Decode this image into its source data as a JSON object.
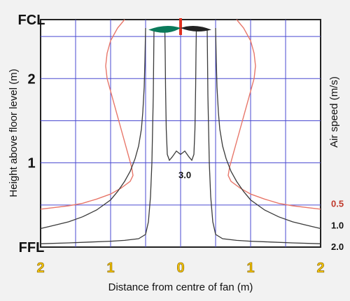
{
  "chart_data": {
    "type": "line",
    "title": "",
    "xlabel": "Distance from centre of fan (m)",
    "ylabel": "Height above floor level (m)",
    "right_label": "Air speed (m/s)",
    "xlim": [
      -2,
      2
    ],
    "ylim": [
      0,
      2.7
    ],
    "x_ticks": [
      "2",
      "1",
      "0",
      "1",
      "2"
    ],
    "y_ticks": [
      {
        "value": 0,
        "label": "FFL"
      },
      {
        "value": 1,
        "label": "1"
      },
      {
        "value": 2,
        "label": "2"
      },
      {
        "value": 2.7,
        "label": "FCL"
      }
    ],
    "grid": true,
    "colors": {
      "grid": "#4a4ad0",
      "red": "#e8776a",
      "black": "#3a3a3a",
      "fan": "#0a7a5a",
      "rod": "#e03020"
    },
    "series": [
      {
        "name": "0.5",
        "color": "#e8776a",
        "x": [
          0.8,
          0.9,
          1.0,
          1.05,
          1.07,
          1.05,
          1.0,
          0.95,
          0.9,
          0.85,
          0.8,
          0.75,
          0.7,
          0.68,
          0.72,
          0.85,
          1.0,
          1.2,
          1.4,
          1.6,
          1.8,
          2.0
        ],
        "y": [
          2.7,
          2.6,
          2.45,
          2.3,
          2.15,
          2.0,
          1.85,
          1.7,
          1.55,
          1.4,
          1.25,
          1.1,
          0.95,
          0.85,
          0.78,
          0.7,
          0.63,
          0.57,
          0.52,
          0.49,
          0.47,
          0.45
        ]
      },
      {
        "name": "1.0",
        "color": "#3a3a3a",
        "x": [
          0.5,
          0.51,
          0.52,
          0.54,
          0.56,
          0.6,
          0.65,
          0.72,
          0.8,
          0.9,
          1.0,
          1.2,
          1.4,
          1.6,
          1.8,
          2.0
        ],
        "y": [
          2.6,
          2.2,
          1.9,
          1.6,
          1.4,
          1.2,
          1.05,
          0.9,
          0.78,
          0.66,
          0.56,
          0.44,
          0.36,
          0.3,
          0.26,
          0.22
        ]
      },
      {
        "name": "2.0",
        "color": "#3a3a3a",
        "x": [
          0.38,
          0.385,
          0.39,
          0.4,
          0.41,
          0.43,
          0.46,
          0.5,
          0.6,
          0.8,
          1.0,
          1.3,
          1.6,
          2.0
        ],
        "y": [
          2.58,
          2.2,
          1.8,
          1.4,
          1.0,
          0.6,
          0.3,
          0.15,
          0.1,
          0.08,
          0.07,
          0.06,
          0.05,
          0.04
        ]
      },
      {
        "name": "3.0",
        "color": "#3a3a3a",
        "x": [
          0.0,
          0.06,
          0.12,
          0.16,
          0.19,
          0.205,
          0.215,
          0.22,
          0.225
        ],
        "y": [
          1.1,
          1.14,
          1.07,
          1.03,
          1.1,
          1.4,
          1.9,
          2.3,
          2.58
        ]
      }
    ],
    "contour_labels": [
      {
        "text": "3.0",
        "x": -0.15,
        "y": 0.86,
        "color": "#111111"
      },
      {
        "text": "0.5",
        "x": 2.03,
        "y": 0.52,
        "color": "#c0392b"
      },
      {
        "text": "1.0",
        "x": 2.03,
        "y": 0.26,
        "color": "#111111"
      },
      {
        "text": "2.0",
        "x": 2.03,
        "y": 0.01,
        "color": "#111111"
      }
    ]
  }
}
